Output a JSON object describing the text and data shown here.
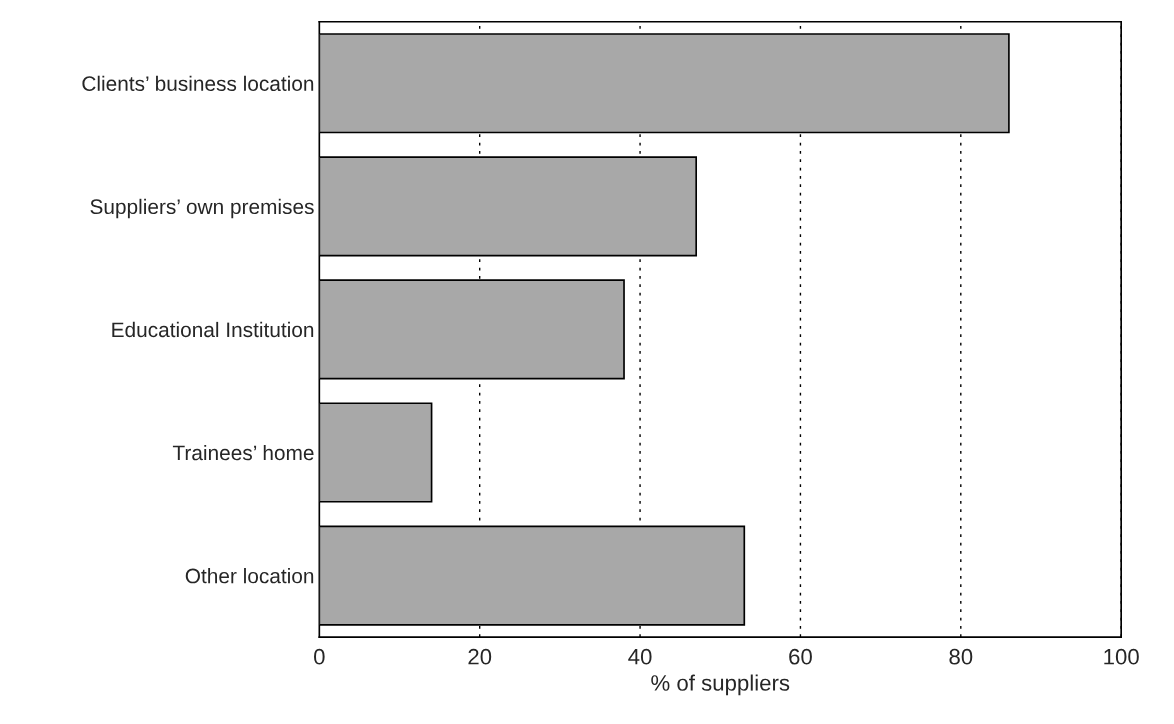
{
  "chart_data": {
    "type": "bar",
    "orientation": "horizontal",
    "xlabel": "% of suppliers",
    "categories": [
      "Clients’ business location",
      "Suppliers’ own premises",
      "Educational Institution",
      "Trainees’ home",
      "Other location"
    ],
    "values": [
      86,
      47,
      38,
      14,
      53
    ],
    "color": "#a8a8a8",
    "xlim": [
      0,
      100
    ],
    "xticks": [
      0,
      20,
      40,
      60,
      80,
      100
    ],
    "grid": "x"
  }
}
